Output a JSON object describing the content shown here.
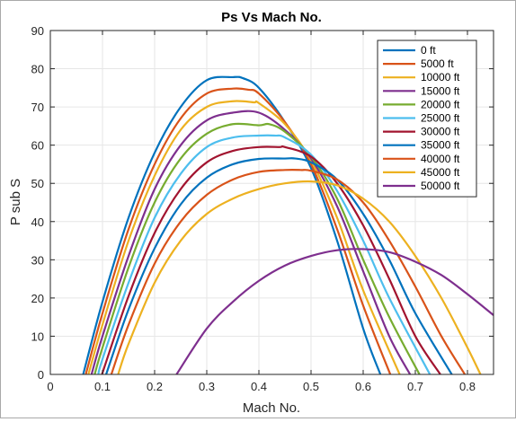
{
  "chart_data": {
    "type": "line",
    "title": "Ps Vs Mach No.",
    "xlabel": "Mach No.",
    "ylabel": "P sub S",
    "xlim": [
      0,
      0.85
    ],
    "ylim": [
      0,
      90
    ],
    "xticks": [
      0,
      0.1,
      0.2,
      0.3,
      0.4,
      0.5,
      0.6,
      0.7,
      0.8
    ],
    "xtick_labels": [
      "0",
      "0.1",
      "0.2",
      "0.3",
      "0.4",
      "0.5",
      "0.6",
      "0.7",
      "0.8"
    ],
    "yticks": [
      0,
      10,
      20,
      30,
      40,
      50,
      60,
      70,
      80,
      90
    ],
    "ytick_labels": [
      "0",
      "10",
      "20",
      "30",
      "40",
      "50",
      "60",
      "70",
      "80",
      "90"
    ],
    "grid": true,
    "legend_position": "top-right",
    "series": [
      {
        "name": "0 ft",
        "color": "#0072BD",
        "x": [
          0.063,
          0.1,
          0.15,
          0.2,
          0.25,
          0.3,
          0.35,
          0.37,
          0.4,
          0.45,
          0.5,
          0.55,
          0.6,
          0.633
        ],
        "y": [
          0,
          19,
          41,
          58,
          70,
          77,
          77.8,
          77.5,
          75,
          66,
          54,
          35,
          12,
          0
        ]
      },
      {
        "name": "5000 ft",
        "color": "#D95319",
        "x": [
          0.068,
          0.1,
          0.15,
          0.2,
          0.25,
          0.3,
          0.35,
          0.38,
          0.4,
          0.45,
          0.5,
          0.55,
          0.6,
          0.652
        ],
        "y": [
          0,
          16,
          38,
          55,
          67,
          73.5,
          74.8,
          74.5,
          73.5,
          66,
          55,
          38,
          18,
          0
        ]
      },
      {
        "name": "10000 ft",
        "color": "#EDB120",
        "x": [
          0.073,
          0.1,
          0.15,
          0.2,
          0.25,
          0.3,
          0.35,
          0.39,
          0.4,
          0.45,
          0.5,
          0.55,
          0.6,
          0.67
        ],
        "y": [
          0,
          13,
          35,
          52,
          64,
          70,
          71.5,
          71.2,
          71,
          65.5,
          56,
          41,
          22,
          0
        ]
      },
      {
        "name": "15000 ft",
        "color": "#7E2F8E",
        "x": [
          0.079,
          0.1,
          0.15,
          0.2,
          0.25,
          0.3,
          0.35,
          0.4,
          0.45,
          0.5,
          0.55,
          0.6,
          0.65,
          0.69
        ],
        "y": [
          0,
          10,
          31,
          48.5,
          60,
          66.5,
          68.5,
          68.5,
          64,
          56.5,
          44,
          27,
          10,
          0
        ]
      },
      {
        "name": "20000 ft",
        "color": "#77AC30",
        "x": [
          0.085,
          0.1,
          0.15,
          0.2,
          0.25,
          0.3,
          0.35,
          0.4,
          0.42,
          0.45,
          0.5,
          0.55,
          0.6,
          0.65,
          0.708
        ],
        "y": [
          0,
          7,
          28,
          45,
          56.5,
          63,
          65.5,
          65.2,
          65.5,
          63.5,
          57,
          46,
          30,
          15,
          0
        ]
      },
      {
        "name": "25000 ft",
        "color": "#4DBEEE",
        "x": [
          0.092,
          0.1,
          0.15,
          0.2,
          0.25,
          0.3,
          0.35,
          0.4,
          0.43,
          0.45,
          0.5,
          0.55,
          0.6,
          0.65,
          0.728
        ],
        "y": [
          0,
          4,
          24,
          41,
          52.5,
          59.5,
          62,
          62.5,
          62.5,
          62,
          57.5,
          48,
          35,
          20,
          0
        ]
      },
      {
        "name": "30000 ft",
        "color": "#A2142F",
        "x": [
          0.099,
          0.15,
          0.2,
          0.25,
          0.3,
          0.35,
          0.4,
          0.44,
          0.45,
          0.5,
          0.55,
          0.6,
          0.65,
          0.7,
          0.748
        ],
        "y": [
          0,
          20.5,
          37,
          48.5,
          55.5,
          58.5,
          59.5,
          59.5,
          59.5,
          57,
          50,
          39,
          25,
          10,
          0
        ]
      },
      {
        "name": "35000 ft",
        "color": "#0072BD",
        "x": [
          0.107,
          0.15,
          0.2,
          0.25,
          0.3,
          0.35,
          0.4,
          0.45,
          0.47,
          0.5,
          0.55,
          0.6,
          0.65,
          0.7,
          0.77
        ],
        "y": [
          0,
          17,
          33,
          44.5,
          51.5,
          55,
          56.4,
          56.5,
          56.5,
          55.5,
          51,
          42,
          30,
          16,
          0
        ]
      },
      {
        "name": "40000 ft",
        "color": "#D95319",
        "x": [
          0.117,
          0.15,
          0.2,
          0.25,
          0.3,
          0.35,
          0.4,
          0.45,
          0.48,
          0.5,
          0.55,
          0.6,
          0.65,
          0.7,
          0.75,
          0.795
        ],
        "y": [
          0,
          13,
          29,
          40,
          47,
          51,
          53,
          53.5,
          53.5,
          53.3,
          51,
          45,
          35,
          23,
          10,
          0
        ]
      },
      {
        "name": "45000 ft",
        "color": "#EDB120",
        "x": [
          0.13,
          0.15,
          0.2,
          0.25,
          0.3,
          0.35,
          0.4,
          0.45,
          0.5,
          0.55,
          0.6,
          0.65,
          0.7,
          0.75,
          0.8,
          0.825
        ],
        "y": [
          0,
          8,
          24,
          35,
          42,
          46,
          48.5,
          50,
          50.5,
          49.5,
          46,
          40,
          31,
          20,
          7,
          0
        ]
      },
      {
        "name": "50000 ft",
        "color": "#7E2F8E",
        "x": [
          0.242,
          0.3,
          0.35,
          0.4,
          0.45,
          0.5,
          0.55,
          0.6,
          0.65,
          0.7,
          0.75,
          0.8,
          0.85
        ],
        "y": [
          0,
          12,
          19,
          24.5,
          28.5,
          31,
          32.5,
          32.8,
          32,
          29.5,
          26,
          21,
          15.5
        ]
      }
    ]
  }
}
